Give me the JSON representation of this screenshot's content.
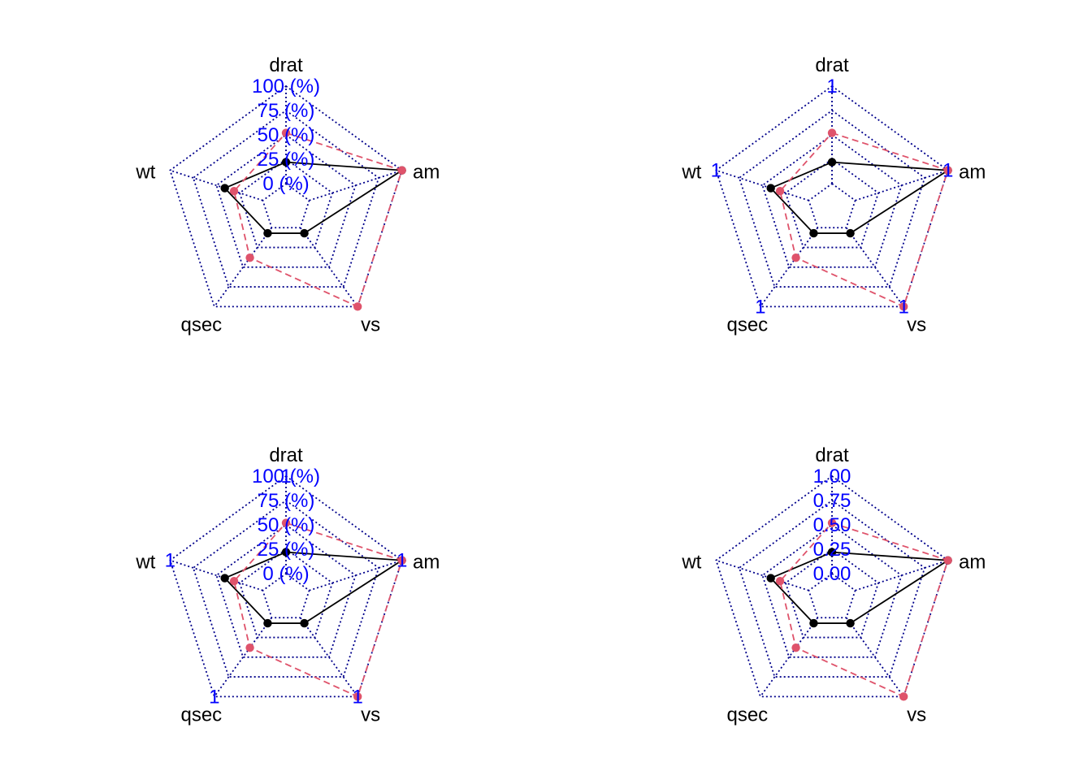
{
  "chart_data": [
    {
      "type": "radar",
      "axes": [
        "drat",
        "am",
        "vs",
        "qsec",
        "wt"
      ],
      "axis_scale": {
        "min": 0,
        "max": 1
      },
      "axis_label_style": "percent-center",
      "caxis_labels": [
        "0 (%)",
        "25 (%)",
        "50 (%)",
        "75 (%)",
        "100 (%)"
      ],
      "series": [
        {
          "values": [
            0.22,
            1.0,
            0.07,
            0.07,
            0.41
          ],
          "color": "#000000",
          "dash": "solid"
        },
        {
          "values": [
            0.52,
            1.0,
            1.0,
            0.38,
            0.31
          ],
          "color": "#DF536B",
          "dash": "dashed"
        }
      ]
    },
    {
      "type": "radar",
      "axes": [
        "drat",
        "am",
        "vs",
        "qsec",
        "wt"
      ],
      "axis_scale": {
        "min": 0,
        "max": 1
      },
      "axis_label_style": "max-on-axis",
      "caxis_labels": [
        "1",
        "1",
        "1",
        "1",
        "1"
      ],
      "series": [
        {
          "values": [
            0.22,
            1.0,
            0.07,
            0.07,
            0.41
          ],
          "color": "#000000",
          "dash": "solid"
        },
        {
          "values": [
            0.52,
            1.0,
            1.0,
            0.38,
            0.31
          ],
          "color": "#DF536B",
          "dash": "dashed"
        }
      ]
    },
    {
      "type": "radar",
      "axes": [
        "drat",
        "am",
        "vs",
        "qsec",
        "wt"
      ],
      "axis_scale": {
        "min": 0,
        "max": 1
      },
      "axis_label_style": "percent-center-and-max-on-axis",
      "caxis_labels": [
        "0 (%)",
        "25 (%)",
        "50 (%)",
        "75 (%)",
        "100 (%)"
      ],
      "axis_max_labels": [
        "1",
        "1",
        "1",
        "1",
        "1"
      ],
      "series": [
        {
          "values": [
            0.22,
            1.0,
            0.07,
            0.07,
            0.41
          ],
          "color": "#000000",
          "dash": "solid"
        },
        {
          "values": [
            0.52,
            1.0,
            1.0,
            0.38,
            0.31
          ],
          "color": "#DF536B",
          "dash": "dashed"
        }
      ]
    },
    {
      "type": "radar",
      "axes": [
        "drat",
        "am",
        "vs",
        "qsec",
        "wt"
      ],
      "axis_scale": {
        "min": 0,
        "max": 1
      },
      "axis_label_style": "value-center",
      "caxis_labels": [
        "0.00",
        "0.25",
        "0.50",
        "0.75",
        "1.00"
      ],
      "series": [
        {
          "values": [
            0.22,
            1.0,
            0.07,
            0.07,
            0.41
          ],
          "color": "#000000",
          "dash": "solid"
        },
        {
          "values": [
            0.52,
            1.0,
            1.0,
            0.38,
            0.31
          ],
          "color": "#DF536B",
          "dash": "dashed"
        }
      ]
    }
  ],
  "colors": {
    "grid": "#00008B",
    "caxis_label": "#0000FF"
  }
}
